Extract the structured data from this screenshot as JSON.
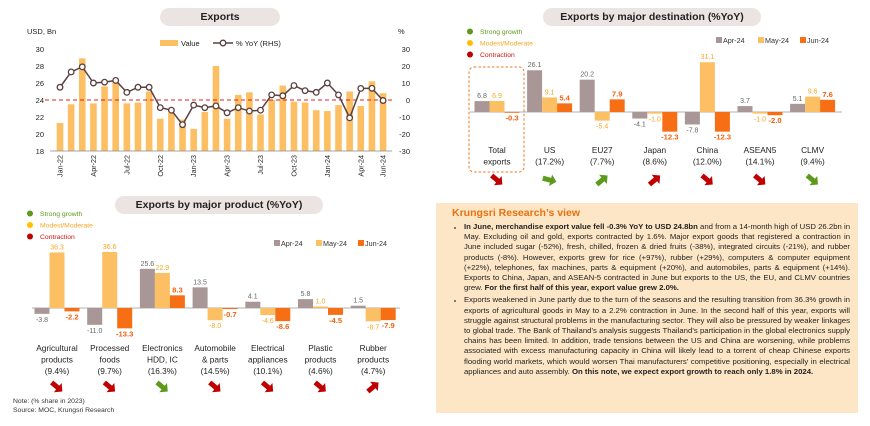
{
  "colors": {
    "apr": "#a99696",
    "may": "#fdbf63",
    "jun": "#f76f15",
    "strong": "#5c9a1b",
    "moderate": "#ffc000",
    "contraction": "#c00000",
    "line": "#5a4040",
    "zero": "#e02020"
  },
  "status_legend": [
    {
      "label": "Strong growth",
      "status": "strong"
    },
    {
      "label": "Modest/Moderate",
      "status": "moderate"
    },
    {
      "label": "Contraction",
      "status": "contraction"
    }
  ],
  "chart_data": [
    {
      "type": "bar+line",
      "title": "Exports",
      "ylabel": "USD, Bn",
      "y2label": "%",
      "ylim": [
        18,
        30
      ],
      "y2lim": [
        -30,
        30
      ],
      "yticks": [
        "30",
        "28",
        "26",
        "24",
        "22",
        "20",
        "18"
      ],
      "y2ticks": [
        "30",
        "20",
        "10",
        "0",
        "-10",
        "-20",
        "-30"
      ],
      "legend": [
        "Value",
        "% YoY (RHS)"
      ],
      "x": [
        "Jan-22",
        "Feb-22",
        "Mar-22",
        "Apr-22",
        "May-22",
        "Jun-22",
        "Jul-22",
        "Aug-22",
        "Sep-22",
        "Oct-22",
        "Nov-22",
        "Dec-22",
        "Jan-23",
        "Feb-23",
        "Mar-23",
        "Apr-23",
        "May-23",
        "Jun-23",
        "Jul-23",
        "Aug-23",
        "Sep-23",
        "Oct-23",
        "Nov-23",
        "Dec-23",
        "Jan-24",
        "Feb-24",
        "Mar-24",
        "Apr-24",
        "May-24",
        "Jun-24"
      ],
      "xtick_labels": [
        "Jan-22",
        "Apr-22",
        "Jul-22",
        "Oct-22",
        "Jan-23",
        "Apr-23",
        "Jul-23",
        "Oct-23",
        "Jan-24",
        "Apr-24",
        "Jun-24"
      ],
      "series": [
        {
          "name": "Value",
          "type": "bar",
          "values": [
            21.3,
            23.5,
            28.9,
            23.6,
            25.6,
            26.1,
            23.6,
            23.7,
            25.0,
            21.8,
            22.5,
            21.7,
            20.6,
            22.6,
            28.0,
            21.8,
            24.6,
            24.9,
            22.3,
            24.0,
            25.7,
            23.8,
            23.7,
            22.8,
            22.7,
            23.4,
            25.0,
            23.3,
            26.2,
            24.8
          ]
        },
        {
          "name": "% YoY (RHS)",
          "type": "line",
          "values": [
            7.5,
            16.5,
            19.5,
            10.0,
            10.5,
            11.5,
            4.5,
            7.5,
            7.5,
            -4.5,
            -6.0,
            -14.5,
            -3.0,
            -4.5,
            -3.5,
            -7.5,
            -4.5,
            -6.5,
            -6.0,
            3.0,
            2.5,
            8.5,
            5.5,
            4.5,
            10.0,
            3.0,
            -10.5,
            6.8,
            6.9,
            -0.3
          ]
        }
      ]
    },
    {
      "type": "bar",
      "title": "Exports by major destination (%YoY)",
      "legend": [
        "Apr-24",
        "May-24",
        "Jun-24"
      ],
      "categories": [
        {
          "name": "Total",
          "sub": "exports",
          "values": [
            6.8,
            6.9,
            -0.3
          ],
          "status": "contraction",
          "dir": "down"
        },
        {
          "name": "US",
          "sub": "(17.2%)",
          "values": [
            26.1,
            9.1,
            5.4
          ],
          "status": "strong",
          "dir": "right"
        },
        {
          "name": "EU27",
          "sub": "(7.7%)",
          "values": [
            20.2,
            -5.4,
            7.9
          ],
          "status": "strong",
          "dir": "up"
        },
        {
          "name": "Japan",
          "sub": "(8.6%)",
          "values": [
            -4.1,
            -1.0,
            -12.3
          ],
          "status": "contraction",
          "dir": "up"
        },
        {
          "name": "China",
          "sub": "(12.0%)",
          "values": [
            -7.8,
            31.1,
            -12.3
          ],
          "status": "contraction",
          "dir": "down"
        },
        {
          "name": "ASEAN5",
          "sub": "(14.1%)",
          "values": [
            3.7,
            -1.0,
            -2.0
          ],
          "status": "contraction",
          "dir": "down"
        },
        {
          "name": "CLMV",
          "sub": "(9.4%)",
          "values": [
            5.1,
            9.6,
            7.6
          ],
          "status": "strong",
          "dir": "down"
        }
      ]
    },
    {
      "type": "bar",
      "title": "Exports by major product (%YoY)",
      "legend": [
        "Apr-24",
        "May-24",
        "Jun-24"
      ],
      "categories": [
        {
          "name": "Agricultural",
          "line2": "products",
          "sub": "(9.4%)",
          "values": [
            -3.8,
            36.3,
            -2.2
          ],
          "status": "contraction",
          "dir": "down"
        },
        {
          "name": "Processed",
          "line2": "foods",
          "sub": "(9.7%)",
          "values": [
            -11.0,
            36.6,
            -13.3
          ],
          "status": "contraction",
          "dir": "down"
        },
        {
          "name": "Electronics",
          "line2": "HDD, IC",
          "sub": "(16.3%)",
          "values": [
            25.6,
            22.9,
            8.3
          ],
          "status": "strong",
          "dir": "down"
        },
        {
          "name": "Automobile",
          "line2": "& parts",
          "sub": "(14.5%)",
          "values": [
            13.5,
            -8.0,
            -0.7
          ],
          "status": "contraction",
          "dir": "down"
        },
        {
          "name": "Electrical",
          "line2": "appliances",
          "sub": "(10.1%)",
          "values": [
            4.1,
            -4.6,
            -8.6
          ],
          "status": "contraction",
          "dir": "down"
        },
        {
          "name": "Plastic",
          "line2": "products",
          "sub": "(4.6%)",
          "values": [
            5.8,
            1.0,
            -4.5
          ],
          "status": "contraction",
          "dir": "down"
        },
        {
          "name": "Rubber",
          "line2": "products",
          "sub": "(4.7%)",
          "values": [
            1.5,
            -8.7,
            -7.9
          ],
          "status": "contraction",
          "dir": "up"
        }
      ]
    }
  ],
  "notes": {
    "note": "Note: (% share in 2023)",
    "source": "Source: MOC, Krungsri Research"
  },
  "view": {
    "title": "Krungsri Research’s view",
    "paragraphs": [
      [
        {
          "t": "In June, merchandise export value fell -0.3% YoY to USD 24.8bn",
          "b": true
        },
        {
          "t": " and from a 14-month high of USD 26.2bn in May. Excluding oil and gold, exports contracted by 1.6%. Major export goods that registered a contraction in June included sugar (-52%), fresh, chilled, frozen & dried fruits (-38%), integrated circuits (-21%), and rubber products (-8%). However, exports grew for rice (+97%), rubber (+29%), computers & computer equipment (+22%), telephones, fax machines, parts & equipment (+20%), and automobiles, parts & equipment (+14%). Exports to China, Japan, and ASEAN-5 contracted in June but exports to the US, the EU, and CLMV countries grew.",
          "b": false
        },
        {
          "t": " For the first half of this year, export value grew 2.0%.",
          "b": true
        }
      ],
      [
        {
          "t": "Exports weakened in June partly due to the turn of the seasons and the resulting transition from 36.3% growth in exports of agricultural goods in May to a 2.2% contraction in June. In the second half of this year, exports will struggle against structural problems in the manufacturing sector. They will also be pressured by weaker linkages to global trade. The Bank of Thailand’s analysis suggests Thailand’s participation in the global electronics supply chains has been limited. In addition, trade tensions between the US and China are worsening, while problems associated with excess manufacturing capacity in China will likely lead to a torrent of cheap Chinese exports flooding world markets, which would worsen Thai manufacturers’ competitive positioning, especially in electrical appliances and auto assembly.",
          "b": false
        },
        {
          "t": " On this note, we expect export growth to reach only 1.8% in 2024.",
          "b": true
        }
      ]
    ]
  }
}
